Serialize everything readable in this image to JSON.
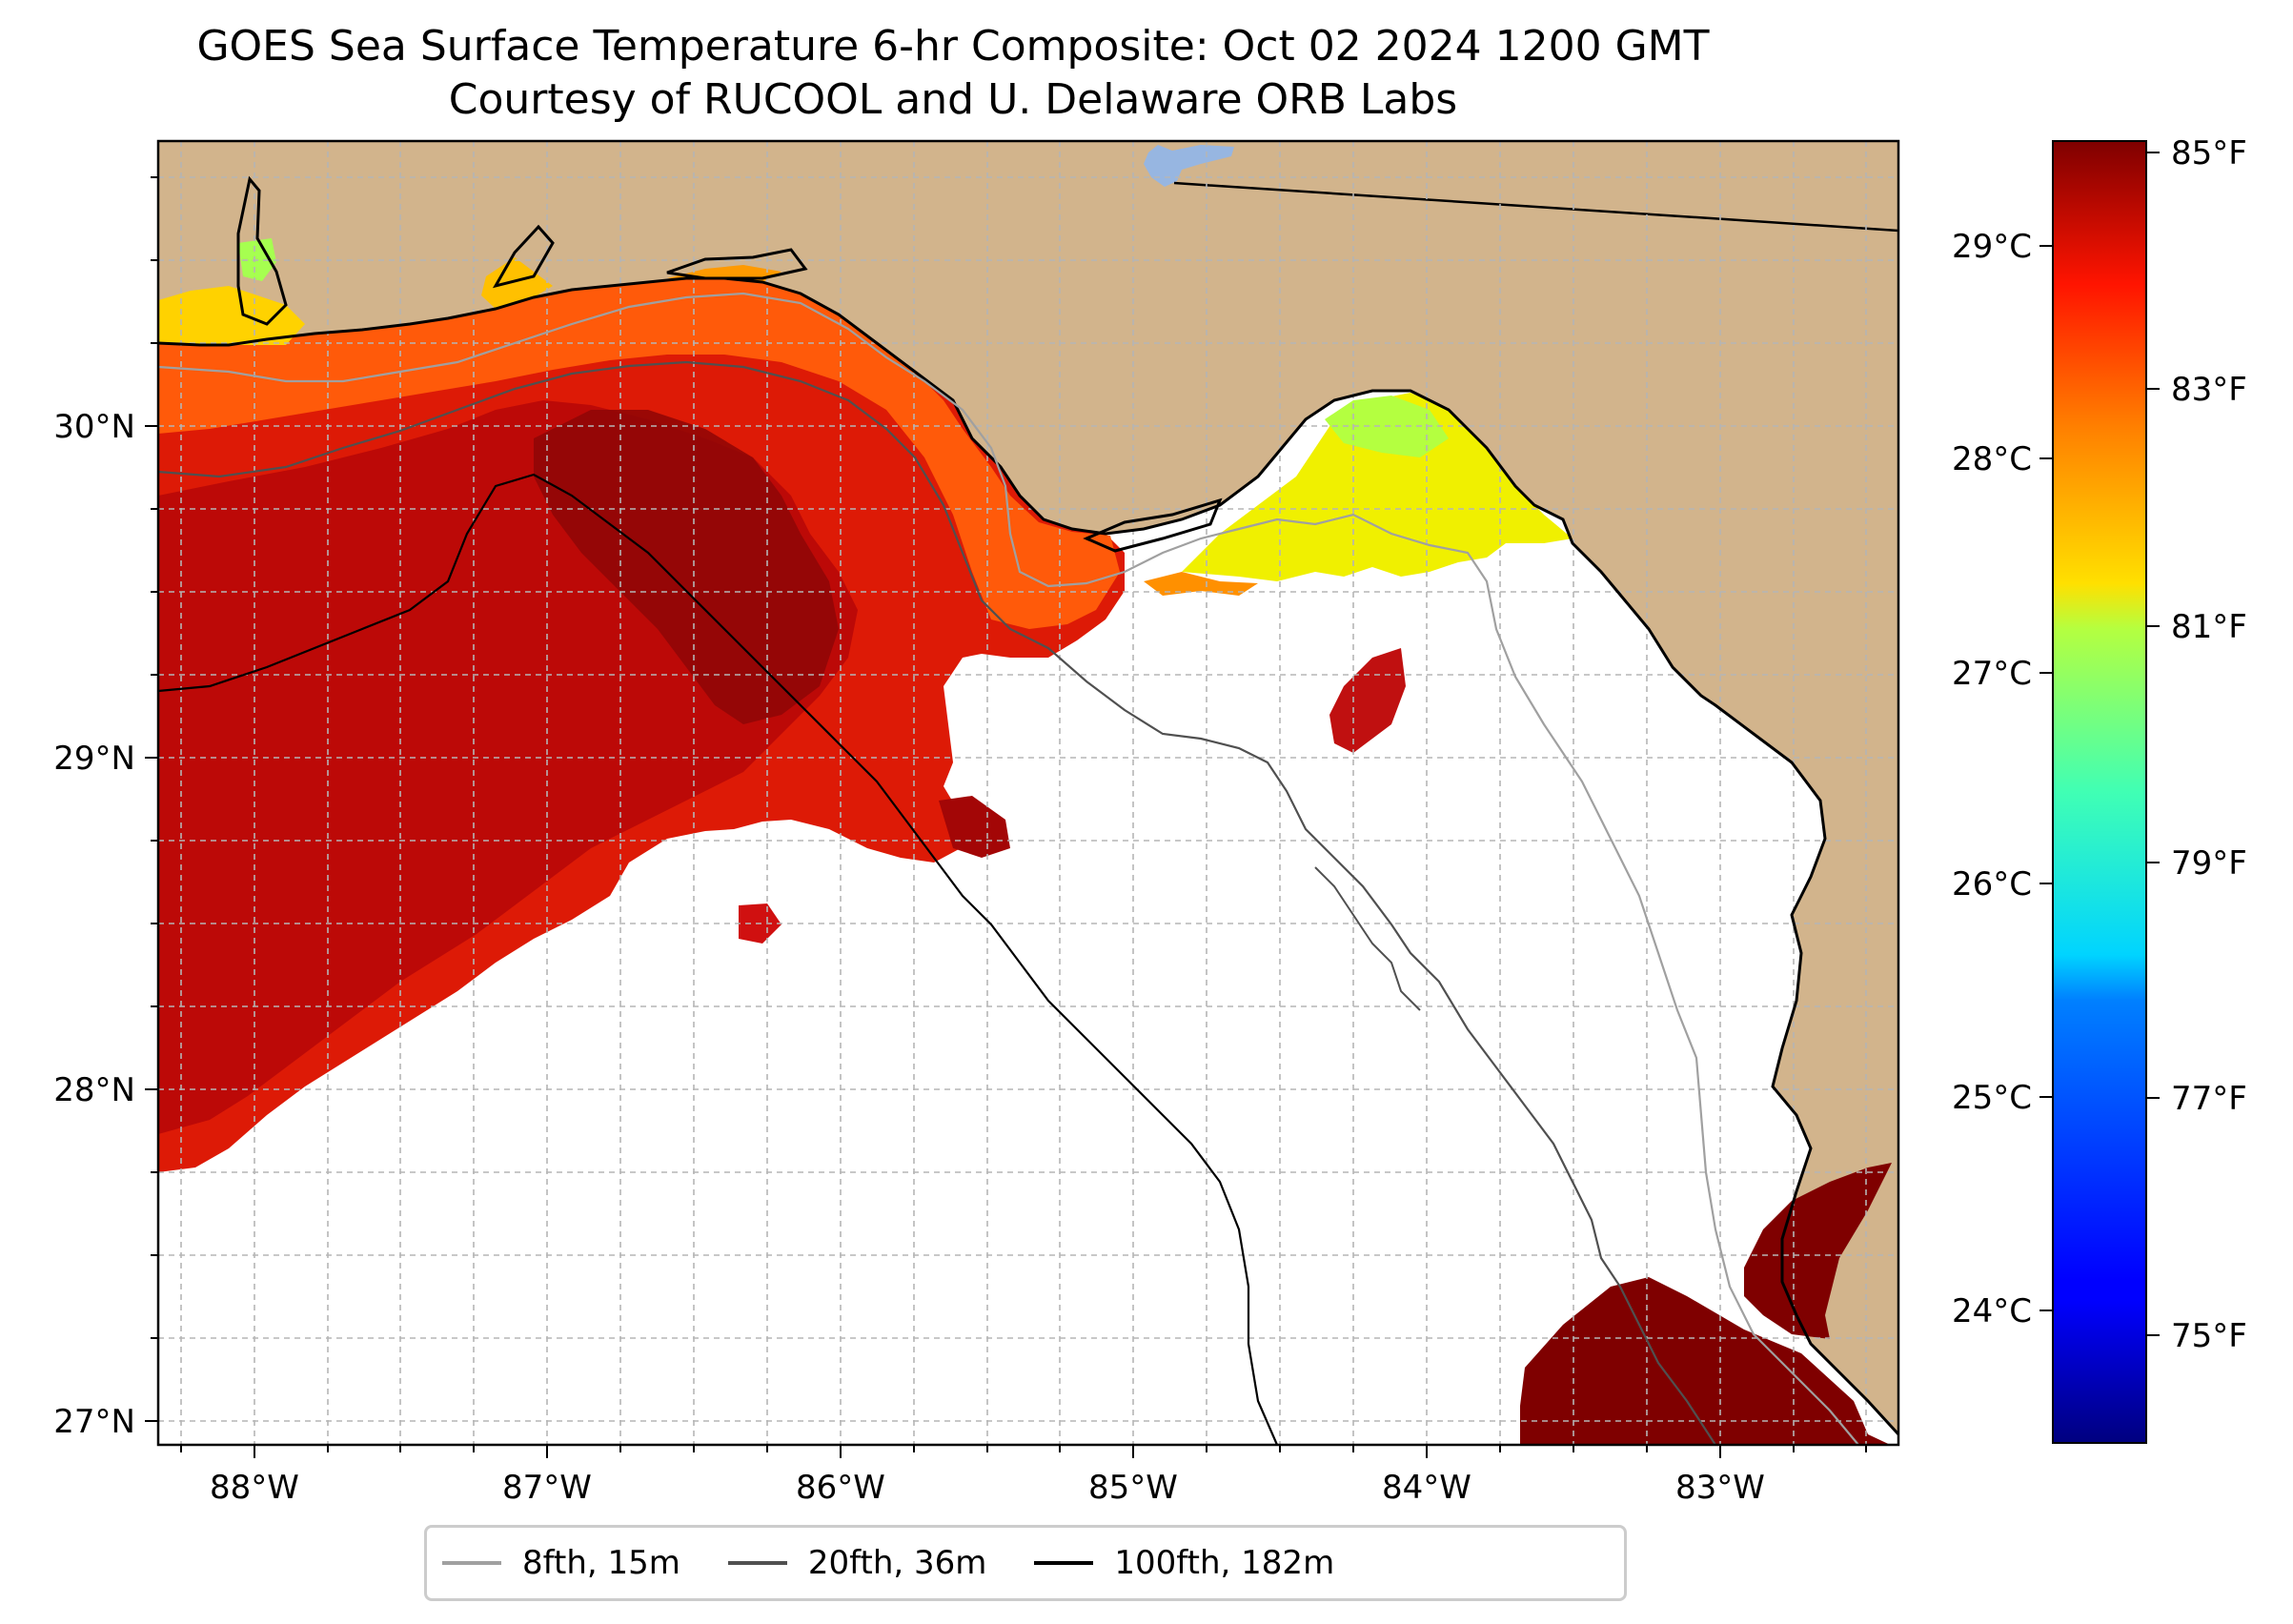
{
  "title": {
    "line1": "GOES Sea Surface Temperature 6-hr Composite: Oct 02 2024 1200 GMT",
    "line2": "Courtesy of RUCOOL and U. Delaware ORB Labs"
  },
  "map": {
    "region": "Gulf of Mexico (NE)",
    "lat_range": [
      26.93,
      30.87
    ],
    "lon_range": [
      -88.33,
      -82.37
    ],
    "lat_ticks": [
      "27°N",
      "28°N",
      "29°N",
      "30°N"
    ],
    "lon_ticks": [
      "88°W",
      "87°W",
      "86°W",
      "85°W",
      "84°W",
      "83°W"
    ],
    "colors": {
      "land": "#d2b48c",
      "ocean_no_data": "#ffffff",
      "lake": "#97b6e1",
      "gridline": "#b0b0b0"
    }
  },
  "colorbar": {
    "colormap": "jet",
    "celsius_ticks": [
      "24°C",
      "25°C",
      "26°C",
      "27°C",
      "28°C",
      "29°C"
    ],
    "fahrenheit_ticks": [
      "75°F",
      "77°F",
      "79°F",
      "81°F",
      "83°F",
      "85°F"
    ],
    "range_f": [
      73.9,
      85.2
    ]
  },
  "legend": {
    "items": [
      {
        "label": "8fth, 15m",
        "color": "#a0a0a0"
      },
      {
        "label": "20fth, 36m",
        "color": "#505050"
      },
      {
        "label": "100fth, 182m",
        "color": "#000000"
      }
    ]
  }
}
